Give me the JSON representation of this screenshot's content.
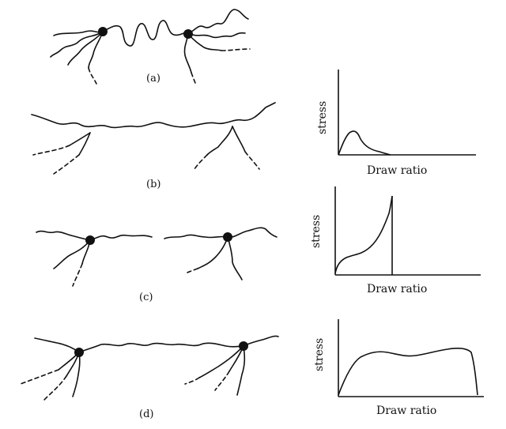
{
  "panels": [
    {
      "label": "(a)"
    },
    {
      "label": "(b)",
      "chart": {
        "ylabel": "stress",
        "xlabel": "Draw ratio"
      }
    },
    {
      "label": "(c)",
      "chart": {
        "ylabel": "stress",
        "xlabel": "Draw ratio"
      }
    },
    {
      "label": "(d)",
      "chart": {
        "ylabel": "stress",
        "xlabel": "Draw ratio"
      }
    }
  ]
}
